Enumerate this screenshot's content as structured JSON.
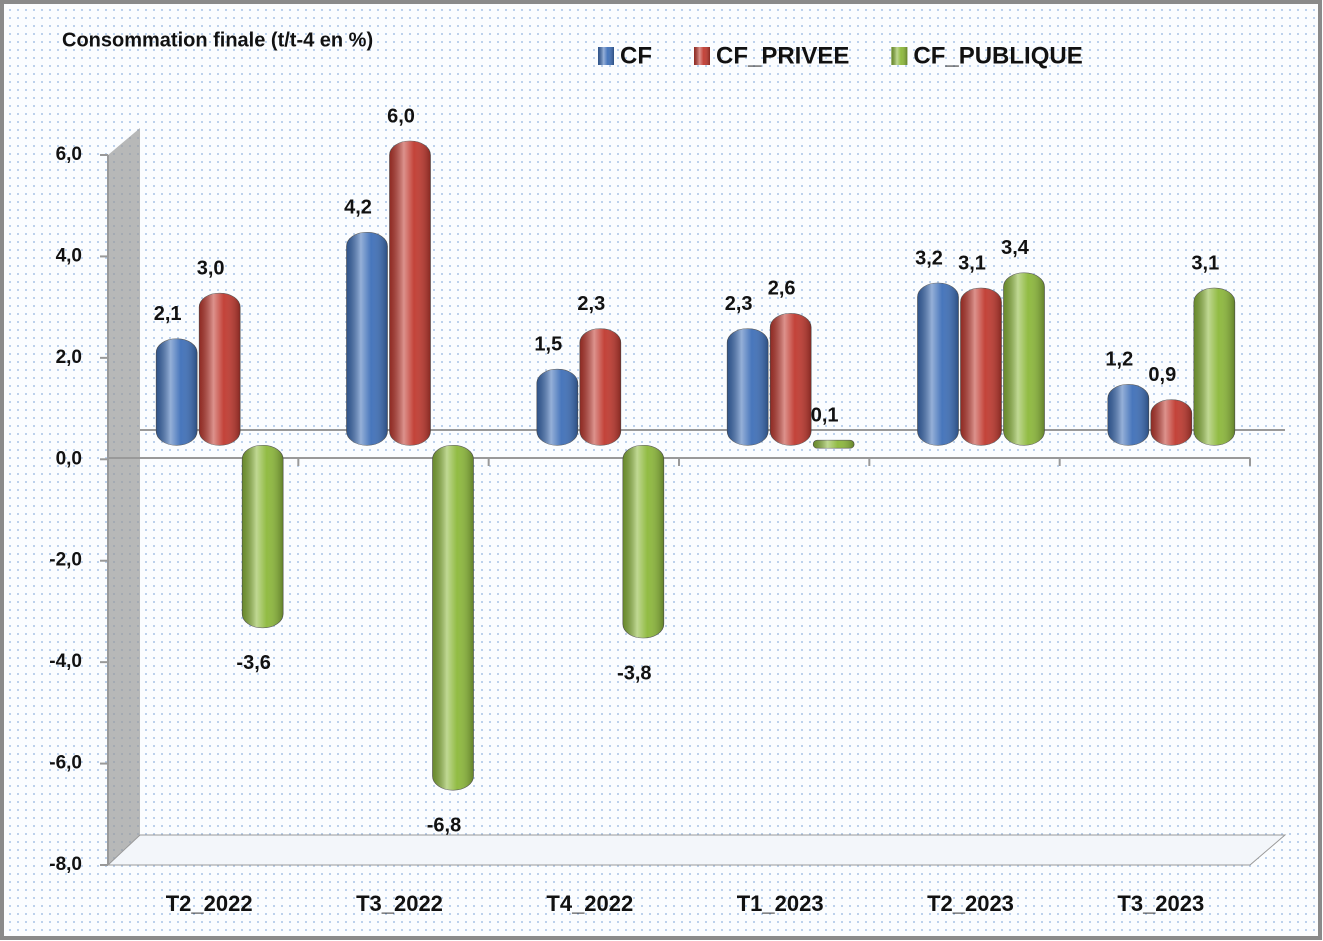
{
  "chart_data": {
    "type": "bar",
    "title": "Consommation finale (t/t-4 en %)",
    "categories": [
      "T2_2022",
      "T3_2022",
      "T4_2022",
      "T1_2023",
      "T2_2023",
      "T3_2023"
    ],
    "series": [
      {
        "name": "CF",
        "color": "#3e6fb8",
        "values": [
          2.1,
          4.2,
          1.5,
          2.3,
          3.2,
          1.2
        ],
        "value_labels": [
          "2,1",
          "4,2",
          "1,5",
          "2,3",
          "3,2",
          "1,2"
        ]
      },
      {
        "name": "CF_PRIVEE",
        "color": "#c0392f",
        "values": [
          3.0,
          6.0,
          2.3,
          2.6,
          3.1,
          0.9
        ],
        "value_labels": [
          "3,0",
          "6,0",
          "2,3",
          "2,6",
          "3,1",
          "0,9"
        ]
      },
      {
        "name": "CF_PUBLIQUE",
        "color": "#8cb83a",
        "values": [
          -3.6,
          -6.8,
          -3.8,
          0.1,
          3.4,
          3.1
        ],
        "value_labels": [
          "-3,6",
          "-6,8",
          "-3,8",
          "0,1",
          "3,4",
          "3,1"
        ]
      }
    ],
    "ylim": [
      -8,
      6
    ],
    "yticks": [
      {
        "value": -8,
        "label": "-8,0"
      },
      {
        "value": -6,
        "label": "-6,0"
      },
      {
        "value": -4,
        "label": "-4,0"
      },
      {
        "value": -2,
        "label": "-2,0"
      },
      {
        "value": 0,
        "label": "0,0"
      },
      {
        "value": 2,
        "label": "2,0"
      },
      {
        "value": 4,
        "label": "4,0"
      },
      {
        "value": 6,
        "label": "6,0"
      }
    ],
    "legend": "top"
  }
}
